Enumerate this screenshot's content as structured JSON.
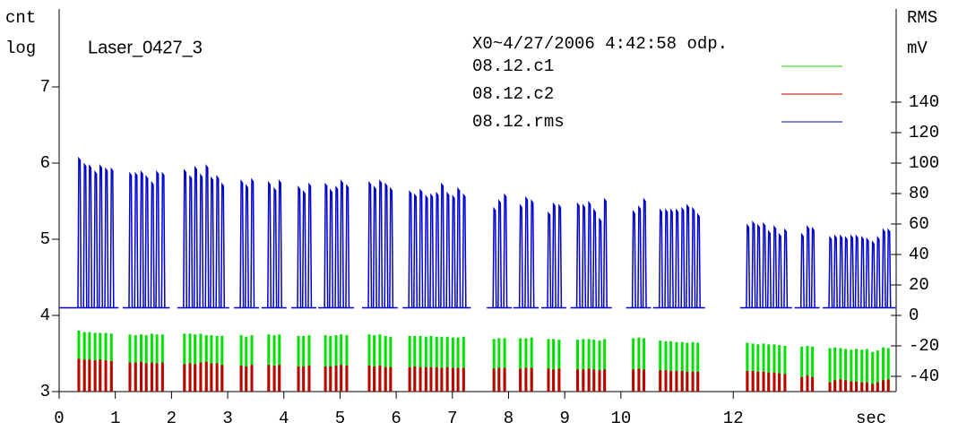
{
  "chart_data": {
    "type": "pulse",
    "title": "Laser_0427_3",
    "legend_title": "X0~4/27/2006 4:42:58 odp.",
    "y_label": [
      "cnt",
      "log"
    ],
    "y2_label": [
      "RMS",
      "mV"
    ],
    "x_label": "sec",
    "xlim": [
      0,
      14.9
    ],
    "xticks": [
      0,
      1,
      2,
      3,
      4,
      5,
      6,
      7,
      8,
      9,
      10,
      12
    ],
    "ylim": [
      3,
      8
    ],
    "yticks": [
      3,
      4,
      5,
      6,
      7
    ],
    "y2lim": [
      -50,
      200
    ],
    "y2ticks": [
      -40,
      -20,
      0,
      20,
      40,
      60,
      80,
      100,
      120,
      140
    ],
    "x": [
      0.35,
      0.45,
      0.54,
      0.64,
      0.73,
      0.83,
      0.93,
      1.26,
      1.36,
      1.46,
      1.55,
      1.65,
      1.74,
      1.84,
      2.23,
      2.33,
      2.42,
      2.52,
      2.62,
      2.71,
      2.81,
      2.9,
      3.24,
      3.33,
      3.43,
      3.73,
      3.83,
      3.92,
      4.26,
      4.35,
      4.45,
      4.74,
      4.83,
      4.93,
      5.02,
      5.12,
      5.52,
      5.61,
      5.71,
      5.81,
      5.9,
      6.24,
      6.33,
      6.43,
      6.53,
      6.62,
      6.72,
      6.81,
      6.91,
      7.01,
      7.1,
      7.2,
      7.74,
      7.83,
      7.93,
      8.21,
      8.31,
      8.41,
      8.71,
      8.8,
      8.9,
      9.23,
      9.33,
      9.43,
      9.52,
      9.62,
      9.71,
      10.22,
      10.32,
      10.41,
      10.7,
      10.8,
      10.89,
      10.99,
      11.09,
      11.18,
      11.28,
      11.37,
      12.25,
      12.35,
      12.44,
      12.54,
      12.63,
      12.73,
      12.82,
      12.92,
      13.22,
      13.32,
      13.41,
      13.72,
      13.81,
      13.91,
      14.0,
      14.1,
      14.19,
      14.29,
      14.38,
      14.48,
      14.57,
      14.67,
      14.76
    ],
    "series": [
      {
        "name": "08.12.c1",
        "color": "#00e000",
        "values": [
          3.8,
          3.78,
          3.78,
          3.77,
          3.77,
          3.77,
          3.76,
          3.75,
          3.74,
          3.75,
          3.74,
          3.76,
          3.75,
          3.75,
          3.76,
          3.76,
          3.75,
          3.76,
          3.74,
          3.74,
          3.73,
          3.73,
          3.74,
          3.72,
          3.74,
          3.75,
          3.74,
          3.75,
          3.73,
          3.73,
          3.74,
          3.74,
          3.73,
          3.74,
          3.75,
          3.74,
          3.75,
          3.74,
          3.75,
          3.73,
          3.72,
          3.73,
          3.73,
          3.73,
          3.72,
          3.73,
          3.72,
          3.72,
          3.72,
          3.71,
          3.71,
          3.72,
          3.69,
          3.7,
          3.7,
          3.7,
          3.7,
          3.71,
          3.69,
          3.69,
          3.68,
          3.68,
          3.69,
          3.69,
          3.68,
          3.67,
          3.69,
          3.7,
          3.71,
          3.7,
          3.67,
          3.66,
          3.66,
          3.65,
          3.65,
          3.64,
          3.65,
          3.64,
          3.64,
          3.63,
          3.62,
          3.63,
          3.62,
          3.62,
          3.61,
          3.6,
          3.59,
          3.6,
          3.59,
          3.57,
          3.58,
          3.57,
          3.56,
          3.55,
          3.56,
          3.55,
          3.56,
          3.52,
          3.54,
          3.58,
          3.57
        ]
      },
      {
        "name": "08.12.c2",
        "color": "#c00000",
        "values": [
          3.43,
          3.42,
          3.42,
          3.41,
          3.42,
          3.41,
          3.4,
          3.38,
          3.38,
          3.39,
          3.37,
          3.38,
          3.37,
          3.38,
          3.36,
          3.37,
          3.36,
          3.38,
          3.39,
          3.37,
          3.37,
          3.35,
          3.34,
          3.33,
          3.35,
          3.35,
          3.34,
          3.35,
          3.33,
          3.33,
          3.34,
          3.33,
          3.33,
          3.34,
          3.35,
          3.34,
          3.34,
          3.33,
          3.34,
          3.32,
          3.32,
          3.32,
          3.33,
          3.32,
          3.32,
          3.32,
          3.32,
          3.31,
          3.32,
          3.31,
          3.31,
          3.31,
          3.3,
          3.31,
          3.31,
          3.3,
          3.31,
          3.31,
          3.3,
          3.29,
          3.3,
          3.29,
          3.29,
          3.3,
          3.29,
          3.28,
          3.29,
          3.29,
          3.3,
          3.29,
          3.28,
          3.28,
          3.27,
          3.27,
          3.27,
          3.26,
          3.26,
          3.26,
          3.27,
          3.27,
          3.26,
          3.26,
          3.25,
          3.25,
          3.24,
          3.23,
          3.19,
          3.21,
          3.19,
          3.12,
          3.15,
          3.16,
          3.15,
          3.13,
          3.13,
          3.12,
          3.12,
          3.1,
          3.12,
          3.15,
          3.16
        ]
      },
      {
        "name": "08.12.rms",
        "color": "#0000cc",
        "axis": "y2",
        "baseline": 5,
        "values": [
          103,
          99,
          98,
          94,
          98,
          96,
          96,
          93,
          93,
          94,
          91,
          87,
          94,
          93,
          95,
          91,
          97,
          92,
          98,
          90,
          91,
          86,
          88,
          85,
          89,
          87,
          83,
          88,
          84,
          81,
          86,
          86,
          82,
          84,
          88,
          85,
          87,
          84,
          88,
          86,
          83,
          81,
          79,
          82,
          78,
          79,
          80,
          86,
          80,
          78,
          83,
          79,
          70,
          75,
          79,
          72,
          77,
          75,
          67,
          73,
          72,
          73,
          72,
          74,
          69,
          63,
          76,
          68,
          71,
          76,
          69,
          69,
          69,
          69,
          70,
          72,
          70,
          66,
          59,
          61,
          59,
          60,
          55,
          58,
          53,
          56,
          53,
          58,
          57,
          51,
          52,
          52,
          51,
          52,
          52,
          51,
          50,
          48,
          51,
          56,
          56
        ]
      }
    ]
  }
}
